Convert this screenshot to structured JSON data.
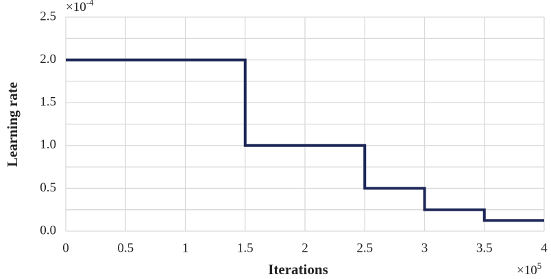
{
  "chart_data": {
    "type": "line",
    "xlabel": "Iterations",
    "ylabel": "Learning rate",
    "x_multiplier": {
      "base": "×10",
      "exponent": "5"
    },
    "y_multiplier": {
      "base": "×10",
      "exponent": "-4"
    },
    "x": [
      0,
      1.5,
      1.5,
      2.5,
      2.5,
      3,
      3,
      3.5,
      3.5,
      4
    ],
    "series": [
      {
        "color": "#1c2657",
        "values": [
          2,
          2,
          1,
          1,
          0.5,
          0.5,
          0.25,
          0.25,
          0.125,
          0.125
        ]
      }
    ],
    "xlim": [
      0,
      4
    ],
    "xticks": [
      0,
      0.5,
      1,
      1.5,
      2,
      2.5,
      3,
      3.5,
      4
    ],
    "ylim": [
      0,
      2.5
    ],
    "yticks": [
      {
        "value": 0,
        "label": "0.0"
      },
      0.5,
      {
        "value": 1,
        "label": "1.0"
      },
      1.5,
      {
        "value": 2,
        "label": "2.0"
      },
      2.5
    ],
    "yminorticks": [
      0.25,
      0.75,
      1.25,
      1.75,
      2.25
    ],
    "grid": true
  }
}
